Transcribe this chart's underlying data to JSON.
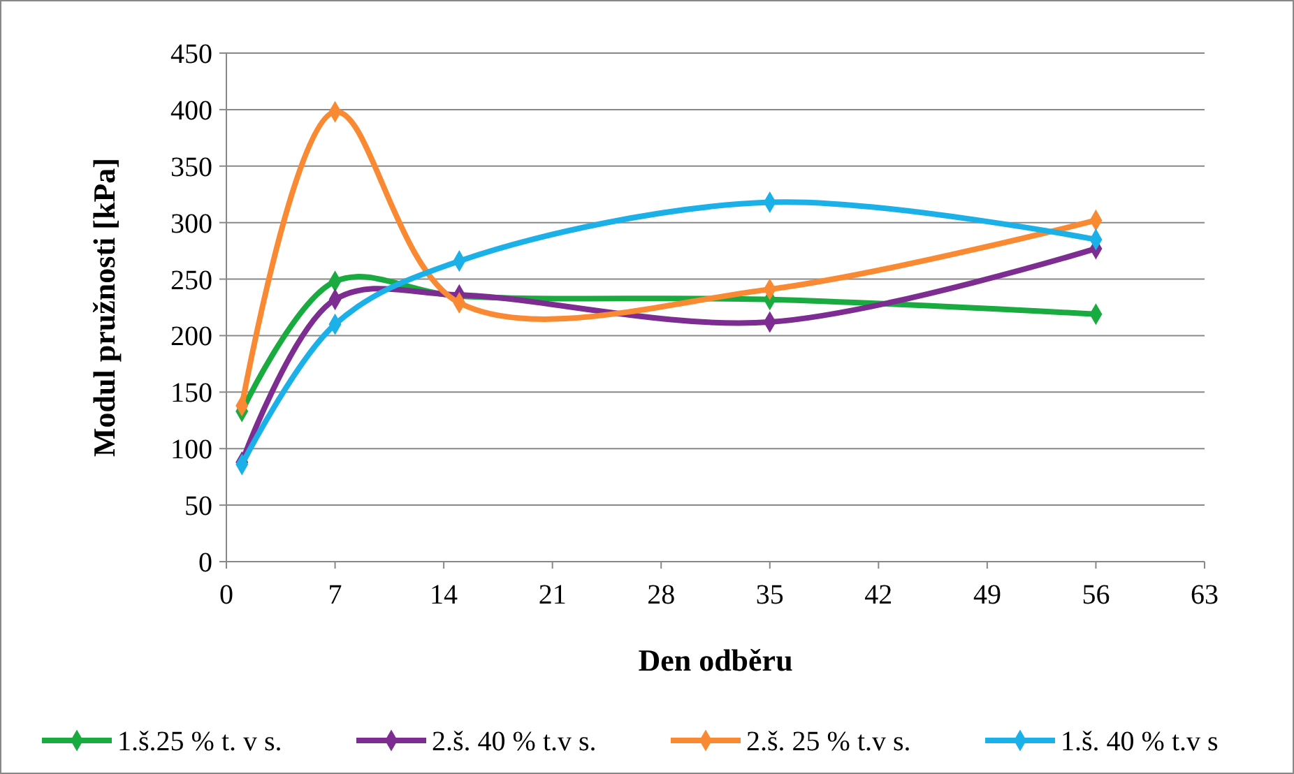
{
  "chart_data": {
    "type": "line",
    "xlabel": "Den odběru",
    "ylabel": "Modul pružnosti [kPa]",
    "xlim": [
      0,
      63
    ],
    "xticks": [
      0,
      7,
      14,
      21,
      28,
      35,
      42,
      49,
      56,
      63
    ],
    "ylim": [
      0,
      450
    ],
    "yticks": [
      0,
      50,
      100,
      150,
      200,
      250,
      300,
      350,
      400,
      450
    ],
    "x": [
      1,
      7,
      15,
      35,
      56
    ],
    "grid": "y",
    "legend": "bottom",
    "marker": "diamond",
    "line_style": "solid",
    "series": [
      {
        "name": "1.š.25 % t. v s.",
        "color": "#1aab40",
        "values": [
          133,
          248,
          235,
          232,
          219
        ]
      },
      {
        "name": "2.š. 40 % t.v s.",
        "color": "#7d2c91",
        "values": [
          88,
          232,
          236,
          212,
          277
        ]
      },
      {
        "name": "2.š. 25 % t.v s.",
        "color": "#f98a33",
        "values": [
          138,
          398,
          229,
          241,
          302
        ]
      },
      {
        "name": "1.š. 40 % t.v s",
        "color": "#1cb0e8",
        "values": [
          86,
          210,
          266,
          318,
          285
        ]
      }
    ]
  }
}
